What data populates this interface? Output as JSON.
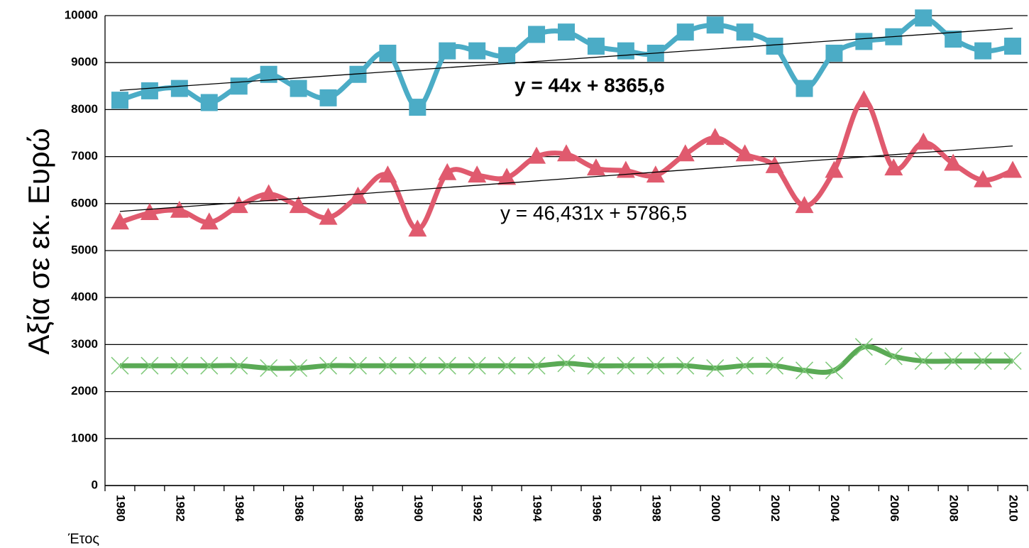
{
  "chart_data": {
    "type": "line",
    "y_label": "Αξία σε εκ. Ευρώ",
    "x_label": "Έτος",
    "categories": [
      "1980",
      null,
      "1982",
      null,
      "1984",
      null,
      "1986",
      null,
      "1988",
      null,
      "1990",
      null,
      "1992",
      null,
      "1994",
      null,
      "1996",
      null,
      "1998",
      null,
      "2000",
      null,
      "2002",
      null,
      "2004",
      null,
      "2006",
      null,
      "2008",
      null,
      "2010"
    ],
    "series": [
      {
        "color": "#4bacc6",
        "marker": "square",
        "values": [
          8200,
          8400,
          8450,
          8150,
          8500,
          8750,
          8450,
          8250,
          8750,
          9200,
          8050,
          9250,
          9250,
          9150,
          9600,
          9650,
          9350,
          9250,
          9200,
          9650,
          9800,
          9650,
          9350,
          8450,
          9200,
          9450,
          9550,
          9950,
          9500,
          9250,
          9350
        ],
        "trendline": {
          "label": "y = 44x + 8365,6",
          "slope": 44,
          "intercept": 8365.6,
          "bold": true
        }
      },
      {
        "color": "#e05a6e",
        "marker": "triangle",
        "values": [
          5600,
          5800,
          5850,
          5600,
          5950,
          6200,
          5950,
          5700,
          6150,
          6600,
          5450,
          6650,
          6600,
          6550,
          7000,
          7050,
          6750,
          6700,
          6600,
          7050,
          7400,
          7050,
          6800,
          5950,
          6700,
          8200,
          6750,
          7300,
          6850,
          6500,
          6700
        ],
        "trendline": {
          "label": "y = 46,431x + 5786,5",
          "slope": 46.431,
          "intercept": 5786.5,
          "bold": false
        }
      },
      {
        "color": "#5aaa55",
        "marker": "x",
        "values": [
          2550,
          2550,
          2550,
          2550,
          2550,
          2500,
          2500,
          2550,
          2550,
          2550,
          2550,
          2550,
          2550,
          2550,
          2550,
          2600,
          2550,
          2550,
          2550,
          2550,
          2500,
          2550,
          2550,
          2450,
          2450,
          2950,
          2750,
          2650,
          2650,
          2650,
          2650
        ]
      }
    ],
    "ylim": [
      0,
      10000
    ],
    "yticks": [
      0,
      1000,
      2000,
      3000,
      4000,
      5000,
      6000,
      7000,
      8000,
      9000,
      10000
    ],
    "grid": true
  }
}
